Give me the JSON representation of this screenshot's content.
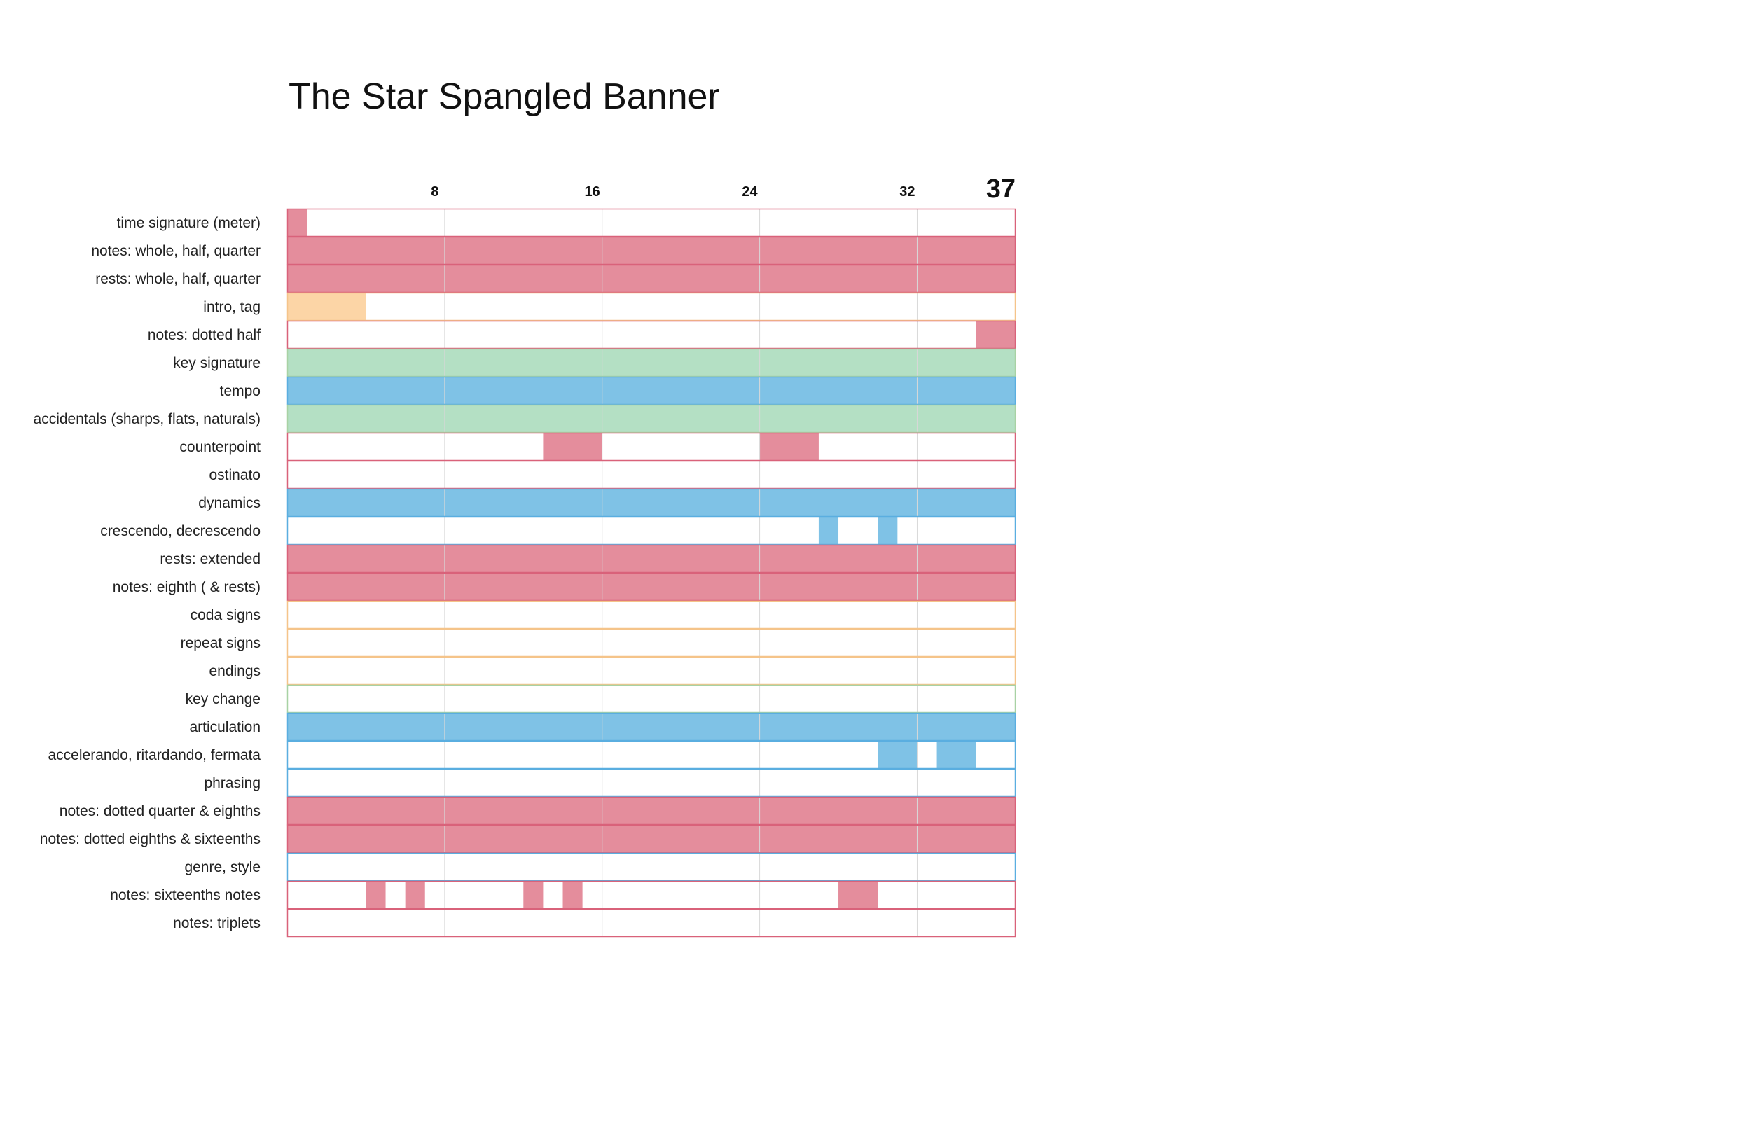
{
  "chart_data": {
    "type": "heatmap",
    "title": "The Star Spangled Banner",
    "xlabel": "",
    "ylabel": "",
    "x_range": [
      1,
      37
    ],
    "x_ticks": [
      8,
      16,
      24,
      32,
      37
    ],
    "grid": true,
    "colors": {
      "red": "#e48d9c",
      "red_border": "#d9627a",
      "orange": "#fcd5a6",
      "orange_border": "#f5c48a",
      "green": "#b4e0c4",
      "green_border": "#a8d2a4",
      "blue": "#7fc2e6",
      "blue_border": "#5aaee0",
      "grid": "#d8d8d8"
    },
    "rows": [
      {
        "label": "time signature (meter)",
        "color": "red",
        "segments": [
          [
            1,
            1
          ]
        ]
      },
      {
        "label": "notes: whole, half, quarter",
        "color": "red",
        "segments": [
          [
            1,
            37
          ]
        ]
      },
      {
        "label": "rests: whole, half, quarter",
        "color": "red",
        "segments": [
          [
            1,
            37
          ]
        ]
      },
      {
        "label": "intro, tag",
        "color": "orange",
        "segments": [
          [
            1,
            4
          ]
        ]
      },
      {
        "label": "notes: dotted half",
        "color": "red",
        "segments": [
          [
            36,
            37
          ]
        ]
      },
      {
        "label": "key signature",
        "color": "green",
        "segments": [
          [
            1,
            37
          ]
        ]
      },
      {
        "label": "tempo",
        "color": "blue",
        "segments": [
          [
            1,
            37
          ]
        ]
      },
      {
        "label": "accidentals (sharps, flats, naturals)",
        "color": "green",
        "segments": [
          [
            1,
            37
          ]
        ]
      },
      {
        "label": "counterpoint",
        "color": "red",
        "segments": [
          [
            14,
            16
          ],
          [
            25,
            27
          ]
        ]
      },
      {
        "label": "ostinato",
        "color": "red",
        "segments": []
      },
      {
        "label": "dynamics",
        "color": "blue",
        "segments": [
          [
            1,
            37
          ]
        ]
      },
      {
        "label": "crescendo, decrescendo",
        "color": "blue",
        "segments": [
          [
            28,
            28
          ],
          [
            31,
            31
          ]
        ]
      },
      {
        "label": "rests: extended",
        "color": "red",
        "segments": [
          [
            1,
            37
          ]
        ]
      },
      {
        "label": "notes: eighth ( & rests)",
        "color": "red",
        "segments": [
          [
            1,
            37
          ]
        ]
      },
      {
        "label": "coda signs",
        "color": "orange",
        "segments": []
      },
      {
        "label": "repeat signs",
        "color": "orange",
        "segments": []
      },
      {
        "label": "endings",
        "color": "orange",
        "segments": []
      },
      {
        "label": "key change",
        "color": "green",
        "segments": []
      },
      {
        "label": "articulation",
        "color": "blue",
        "segments": [
          [
            1,
            37
          ]
        ]
      },
      {
        "label": "accelerando, ritardando, fermata",
        "color": "blue",
        "segments": [
          [
            31,
            32
          ],
          [
            34,
            35
          ]
        ]
      },
      {
        "label": "phrasing",
        "color": "blue",
        "segments": []
      },
      {
        "label": "notes: dotted quarter & eighths",
        "color": "red",
        "segments": [
          [
            1,
            37
          ]
        ]
      },
      {
        "label": "notes: dotted eighths & sixteenths",
        "color": "red",
        "segments": [
          [
            1,
            37
          ]
        ]
      },
      {
        "label": "genre, style",
        "color": "blue",
        "segments": []
      },
      {
        "label": "notes: sixteenths notes",
        "color": "red",
        "segments": [
          [
            5,
            5
          ],
          [
            7,
            7
          ],
          [
            13,
            13
          ],
          [
            15,
            15
          ],
          [
            29,
            30
          ]
        ]
      },
      {
        "label": "notes: triplets",
        "color": "red",
        "segments": []
      }
    ]
  }
}
